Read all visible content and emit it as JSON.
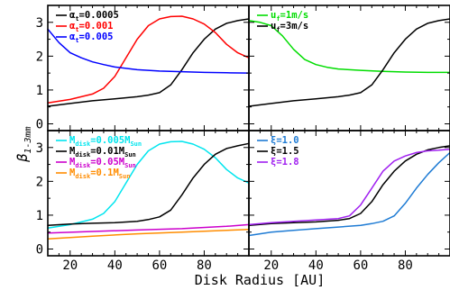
{
  "chart_data": [
    {
      "type": "line",
      "panel": "top-left",
      "xlim": [
        10,
        100
      ],
      "ylim": [
        -0.2,
        3.5
      ],
      "yticks": [
        0,
        1,
        2,
        3
      ],
      "xticks": [
        20,
        40,
        60,
        80
      ],
      "show_xticklabels": false,
      "show_yticklabels": true,
      "legend_position": "top-left",
      "series": [
        {
          "name": "α_t=0.0005",
          "sym": "α",
          "sub": "t",
          "rest": "=0.0005",
          "color": "#000000",
          "x": [
            10,
            20,
            30,
            40,
            50,
            55,
            60,
            65,
            70,
            75,
            80,
            85,
            90,
            95,
            100
          ],
          "y": [
            0.52,
            0.6,
            0.68,
            0.74,
            0.8,
            0.85,
            0.92,
            1.15,
            1.6,
            2.1,
            2.5,
            2.8,
            2.97,
            3.05,
            3.1
          ]
        },
        {
          "name": "α_t=0.001",
          "sym": "α",
          "sub": "t",
          "rest": "=0.001",
          "color": "#ff0000",
          "x": [
            10,
            20,
            30,
            35,
            40,
            45,
            50,
            55,
            60,
            65,
            70,
            75,
            80,
            85,
            90,
            95,
            100
          ],
          "y": [
            0.62,
            0.72,
            0.88,
            1.05,
            1.4,
            1.95,
            2.5,
            2.9,
            3.1,
            3.17,
            3.18,
            3.1,
            2.95,
            2.7,
            2.35,
            2.1,
            1.95
          ]
        },
        {
          "name": "α_t=0.005",
          "sym": "α",
          "sub": "t",
          "rest": "=0.005",
          "color": "#0000ff",
          "x": [
            10,
            15,
            20,
            25,
            30,
            35,
            40,
            50,
            60,
            70,
            80,
            90,
            100
          ],
          "y": [
            2.8,
            2.4,
            2.1,
            1.95,
            1.83,
            1.75,
            1.68,
            1.6,
            1.56,
            1.54,
            1.52,
            1.51,
            1.5
          ]
        }
      ]
    },
    {
      "type": "line",
      "panel": "top-right",
      "xlim": [
        10,
        100
      ],
      "ylim": [
        -0.2,
        3.5
      ],
      "xticks": [
        20,
        40,
        60,
        80
      ],
      "show_xticklabels": false,
      "show_yticklabels": false,
      "legend_position": "top-left",
      "series": [
        {
          "name": "u_f=1m/s",
          "sym": "u",
          "sub": "f",
          "rest": "=1m/s",
          "color": "#00dd00",
          "x": [
            10,
            15,
            20,
            25,
            30,
            35,
            40,
            45,
            50,
            60,
            70,
            80,
            90,
            100
          ],
          "y": [
            3.05,
            3.0,
            2.9,
            2.6,
            2.2,
            1.9,
            1.75,
            1.67,
            1.62,
            1.58,
            1.55,
            1.53,
            1.52,
            1.52
          ]
        },
        {
          "name": "u_f=3m/s",
          "sym": "u",
          "sub": "f",
          "rest": "=3m/s",
          "color": "#000000",
          "x": [
            10,
            20,
            30,
            40,
            50,
            55,
            60,
            65,
            70,
            75,
            80,
            85,
            90,
            95,
            100
          ],
          "y": [
            0.52,
            0.6,
            0.68,
            0.74,
            0.8,
            0.85,
            0.92,
            1.15,
            1.6,
            2.1,
            2.5,
            2.8,
            2.97,
            3.05,
            3.1
          ]
        }
      ]
    },
    {
      "type": "line",
      "panel": "bottom-left",
      "xlim": [
        10,
        100
      ],
      "ylim": [
        -0.2,
        3.5
      ],
      "yticks": [
        0,
        1,
        2,
        3
      ],
      "xticks": [
        20,
        40,
        60,
        80
      ],
      "show_xticklabels": true,
      "show_yticklabels": true,
      "legend_position": "top-left",
      "series": [
        {
          "name": "M_disk=0.005M_Sun",
          "sym": "M",
          "sub": "disk",
          "rest": "=0.005M",
          "sub2": "Sun",
          "color": "#00e5ee",
          "x": [
            10,
            20,
            30,
            35,
            40,
            45,
            50,
            55,
            60,
            65,
            70,
            75,
            80,
            85,
            90,
            95,
            100
          ],
          "y": [
            0.62,
            0.72,
            0.88,
            1.05,
            1.4,
            1.95,
            2.5,
            2.9,
            3.1,
            3.17,
            3.18,
            3.1,
            2.95,
            2.7,
            2.35,
            2.1,
            1.95
          ]
        },
        {
          "name": "M_disk=0.01M_Sun",
          "sym": "M",
          "sub": "disk",
          "rest": "=0.01M",
          "sub2": "Sun",
          "color": "#000000",
          "x": [
            10,
            20,
            30,
            40,
            50,
            55,
            60,
            65,
            70,
            75,
            80,
            85,
            90,
            95,
            100
          ],
          "y": [
            0.7,
            0.74,
            0.76,
            0.78,
            0.82,
            0.87,
            0.95,
            1.15,
            1.6,
            2.1,
            2.5,
            2.8,
            2.97,
            3.05,
            3.12
          ]
        },
        {
          "name": "M_disk=0.05M_Sun",
          "sym": "M",
          "sub": "disk",
          "rest": "=0.05M",
          "sub2": "Sun",
          "color": "#cc00cc",
          "x": [
            10,
            30,
            50,
            70,
            90,
            100
          ],
          "y": [
            0.47,
            0.52,
            0.56,
            0.6,
            0.67,
            0.72
          ]
        },
        {
          "name": "M_disk=0.1M_Sun",
          "sym": "M",
          "sub": "disk",
          "rest": "=0.1M",
          "sub2": "Sun",
          "color": "#ff8c00",
          "x": [
            10,
            30,
            50,
            70,
            90,
            100
          ],
          "y": [
            0.3,
            0.38,
            0.45,
            0.5,
            0.55,
            0.58
          ]
        }
      ]
    },
    {
      "type": "line",
      "panel": "bottom-right",
      "xlim": [
        10,
        100
      ],
      "ylim": [
        -0.2,
        3.5
      ],
      "xticks": [
        20,
        40,
        60,
        80
      ],
      "show_xticklabels": true,
      "show_yticklabels": false,
      "legend_position": "top-left",
      "series": [
        {
          "name": "ξ=1.0",
          "sym": "ξ",
          "rest": "=1.0",
          "color": "#1e7bd4",
          "x": [
            10,
            20,
            30,
            40,
            50,
            60,
            65,
            70,
            75,
            80,
            85,
            90,
            95,
            100
          ],
          "y": [
            0.4,
            0.5,
            0.55,
            0.6,
            0.65,
            0.7,
            0.75,
            0.82,
            0.98,
            1.35,
            1.8,
            2.2,
            2.55,
            2.85
          ]
        },
        {
          "name": "ξ=1.5",
          "sym": "ξ",
          "rest": "=1.5",
          "color": "#000000",
          "x": [
            10,
            20,
            30,
            40,
            50,
            55,
            60,
            65,
            70,
            75,
            80,
            85,
            90,
            95,
            100
          ],
          "y": [
            0.7,
            0.75,
            0.78,
            0.8,
            0.85,
            0.9,
            1.05,
            1.4,
            1.9,
            2.3,
            2.6,
            2.8,
            2.93,
            3.0,
            3.05
          ]
        },
        {
          "name": "ξ=1.8",
          "sym": "ξ",
          "rest": "=1.8",
          "color": "#a020f0",
          "x": [
            10,
            20,
            30,
            40,
            50,
            55,
            60,
            65,
            70,
            75,
            80,
            85,
            90,
            95,
            100
          ],
          "y": [
            0.72,
            0.78,
            0.82,
            0.86,
            0.9,
            0.98,
            1.3,
            1.8,
            2.3,
            2.6,
            2.75,
            2.85,
            2.9,
            2.92,
            2.95
          ]
        }
      ]
    }
  ],
  "axes": {
    "xlabel": "Disk Radius [AU]",
    "ylabel_main": "β",
    "ylabel_sub": "1-3mm"
  }
}
